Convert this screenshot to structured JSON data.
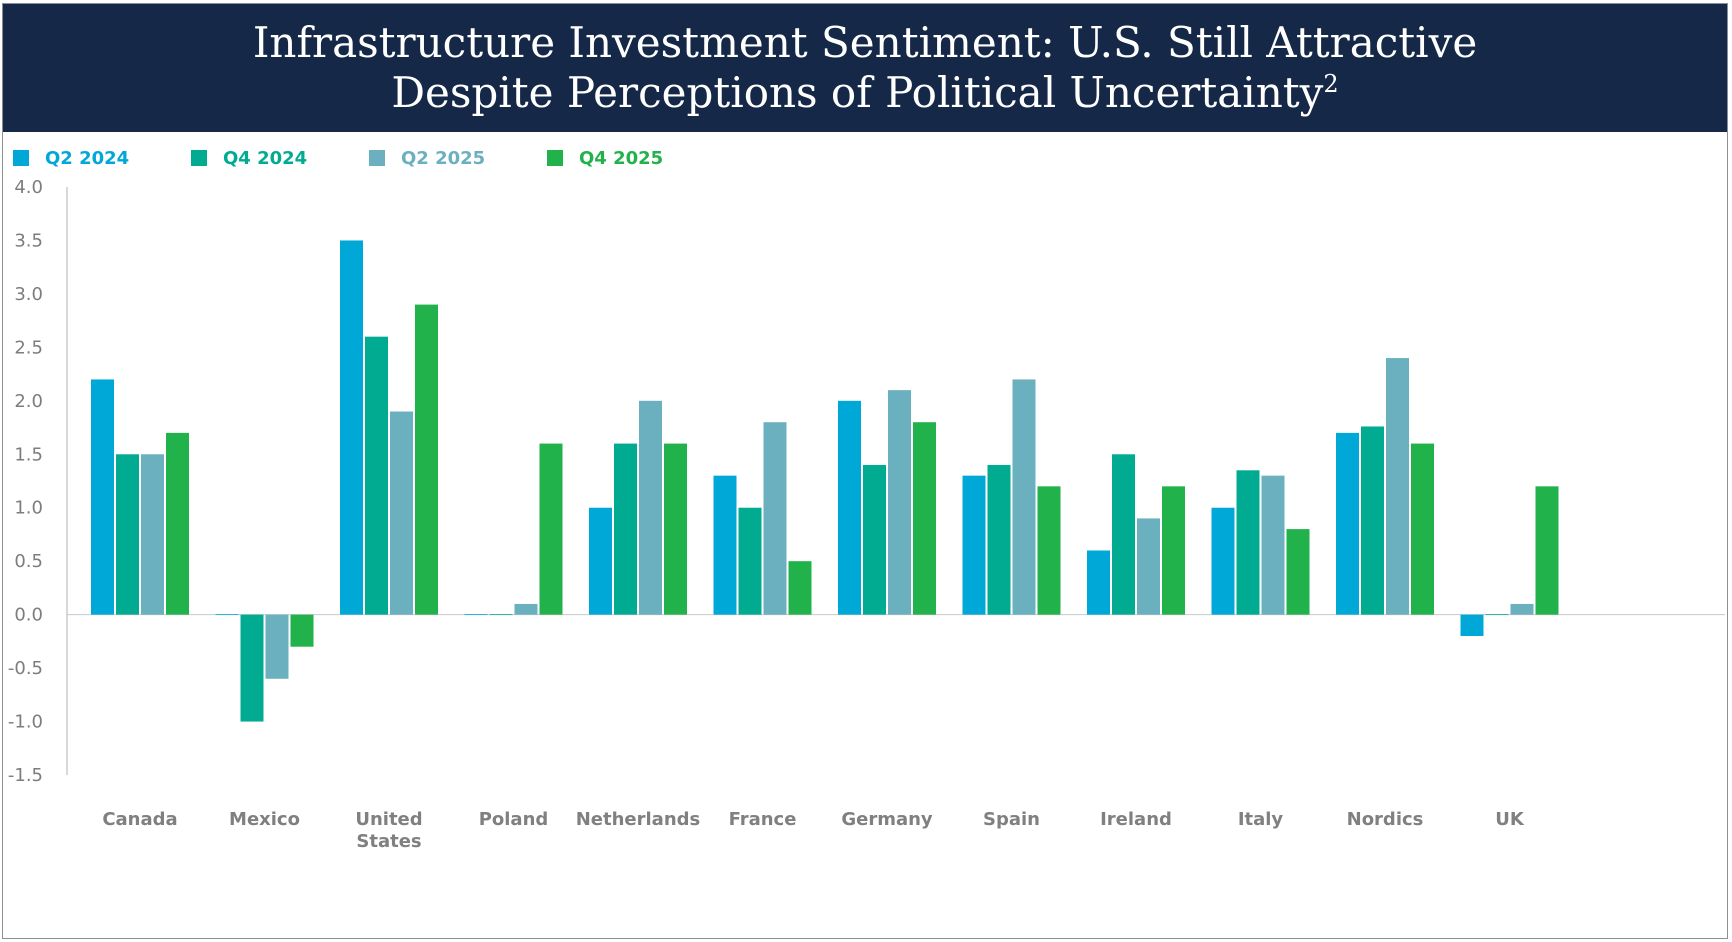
{
  "title": {
    "line1": "Infrastructure Investment Sentiment: U.S. Still Attractive",
    "line2": "Despite Perceptions of Political Uncertainty",
    "footnote": "2"
  },
  "chart_data": {
    "type": "bar",
    "categories": [
      "Canada",
      "Mexico",
      "United States",
      "Poland",
      "Netherlands",
      "France",
      "Germany",
      "Spain",
      "Ireland",
      "Italy",
      "Nordics",
      "UK"
    ],
    "category_label_lines": [
      [
        "Canada"
      ],
      [
        "Mexico"
      ],
      [
        "United",
        "States"
      ],
      [
        "Poland"
      ],
      [
        "Netherlands"
      ],
      [
        "France"
      ],
      [
        "Germany"
      ],
      [
        "Spain"
      ],
      [
        "Ireland"
      ],
      [
        "Italy"
      ],
      [
        "Nordics"
      ],
      [
        "UK"
      ]
    ],
    "series": [
      {
        "name": "Q2 2024",
        "color": "#00a8d8",
        "values": [
          2.2,
          0.0,
          3.5,
          0.0,
          1.0,
          1.3,
          2.0,
          1.3,
          0.6,
          1.0,
          1.7,
          -0.2
        ]
      },
      {
        "name": "Q4 2024",
        "color": "#00ab92",
        "values": [
          1.5,
          -1.0,
          2.6,
          0.0,
          1.6,
          1.0,
          1.4,
          1.4,
          1.5,
          1.35,
          1.76,
          0.0
        ]
      },
      {
        "name": "Q2 2025",
        "color": "#6ab0bf",
        "values": [
          1.5,
          -0.6,
          1.9,
          0.1,
          2.0,
          1.8,
          2.1,
          2.2,
          0.9,
          1.3,
          2.4,
          0.1
        ]
      },
      {
        "name": "Q4 2025",
        "color": "#22b24c",
        "values": [
          1.7,
          -0.3,
          2.9,
          1.6,
          1.6,
          0.5,
          1.8,
          1.2,
          1.2,
          0.8,
          1.6,
          1.2
        ]
      }
    ],
    "yticks": [
      "4.0",
      "3.5",
      "3.0",
      "2.5",
      "2.0",
      "1.5",
      "1.0",
      "0.5",
      "0.0",
      "-0.5",
      "-1.0",
      "-1.5"
    ],
    "ylim": [
      -1.5,
      4.0
    ],
    "grid": false,
    "legend_position": "top-left",
    "xlabel": "",
    "ylabel": ""
  },
  "colors": {
    "title_background": "#152847",
    "axis": "#b0b0b0"
  }
}
